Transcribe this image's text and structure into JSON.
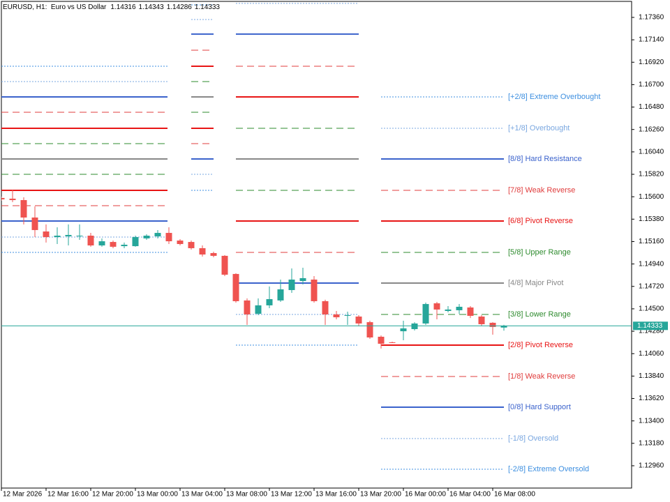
{
  "chart_data": {
    "type": "candlestick",
    "title": "EURUSD, H1:  Euro vs US Dollar",
    "categories": [
      "12 Mar 2026",
      null,
      null,
      null,
      "12 Mar 16:00",
      null,
      null,
      null,
      "12 Mar 20:00",
      null,
      null,
      null,
      "13 Mar 00:00",
      null,
      null,
      null,
      "13 Mar 04:00",
      null,
      null,
      null,
      "13 Mar 08:00",
      null,
      null,
      null,
      "13 Mar 12:00",
      null,
      null,
      null,
      "13 Mar 16:00",
      null,
      null,
      null,
      "13 Mar 20:00",
      null,
      null,
      null,
      "16 Mar 00:00",
      null,
      null,
      null,
      "16 Mar 04:00",
      null,
      null,
      null,
      "16 Mar 08:00",
      null
    ],
    "candles": [
      [
        1.15588,
        1.15601,
        1.1556,
        1.15574
      ],
      [
        1.15581,
        1.1567,
        1.15547,
        1.15567
      ],
      [
        1.15567,
        1.15594,
        1.15328,
        1.15396
      ],
      [
        1.15396,
        1.15505,
        1.15204,
        1.15273
      ],
      [
        1.15259,
        1.15328,
        1.1515,
        1.15204
      ],
      [
        1.15204,
        1.153,
        1.15136,
        1.15218
      ],
      [
        1.15211,
        1.15328,
        1.15122,
        1.15225
      ],
      [
        1.15211,
        1.15328,
        1.15177,
        1.15218
      ],
      [
        1.15218,
        1.15245,
        1.15109,
        1.15122
      ],
      [
        1.15122,
        1.15191,
        1.15109,
        1.15163
      ],
      [
        1.15156,
        1.1517,
        1.15095,
        1.15109
      ],
      [
        1.15115,
        1.1515,
        1.15095,
        1.15129
      ],
      [
        1.15115,
        1.15218,
        1.15109,
        1.15204
      ],
      [
        1.15191,
        1.15232,
        1.15177,
        1.15218
      ],
      [
        1.15211,
        1.15273,
        1.15191,
        1.15245
      ],
      [
        1.15245,
        1.153,
        1.15136,
        1.15163
      ],
      [
        1.1517,
        1.15184,
        1.15122,
        1.15136
      ],
      [
        1.15156,
        1.1517,
        1.15081,
        1.15095
      ],
      [
        1.15095,
        1.15122,
        1.15013,
        1.15033
      ],
      [
        1.15047,
        1.15061,
        1.15006,
        1.1502
      ],
      [
        1.1502,
        1.15027,
        1.14821,
        1.14835
      ],
      [
        1.14842,
        1.14849,
        1.14561,
        1.14575
      ],
      [
        1.14582,
        1.14602,
        1.14342,
        1.14445
      ],
      [
        1.14451,
        1.14602,
        1.14438,
        1.14534
      ],
      [
        1.14534,
        1.14719,
        1.14506,
        1.14595
      ],
      [
        1.14582,
        1.14787,
        1.14568,
        1.14691
      ],
      [
        1.14684,
        1.14896,
        1.14657,
        1.14787
      ],
      [
        1.14773,
        1.14903,
        1.14739,
        1.14801
      ],
      [
        1.14787,
        1.14821,
        1.14561,
        1.14575
      ],
      [
        1.14575,
        1.14589,
        1.14342,
        1.14445
      ],
      [
        1.14445,
        1.14479,
        1.14397,
        1.14417
      ],
      [
        1.14431,
        1.14472,
        1.14342,
        1.14438
      ],
      [
        1.14424,
        1.14438,
        1.14329,
        1.14356
      ],
      [
        1.14369,
        1.14383,
        1.14205,
        1.14219
      ],
      [
        1.14226,
        1.14239,
        1.1411,
        1.14157
      ],
      [
        1.14171,
        1.14178,
        1.14164,
        1.14164
      ],
      [
        1.1428,
        1.14383,
        1.14192,
        1.14308
      ],
      [
        1.14301,
        1.14369,
        1.14287,
        1.14356
      ],
      [
        1.14356,
        1.14561,
        1.14342,
        1.14547
      ],
      [
        1.14554,
        1.14568,
        1.14397,
        1.14493
      ],
      [
        1.14479,
        1.14527,
        1.14465,
        1.14493
      ],
      [
        1.14486,
        1.14547,
        1.14451,
        1.1452
      ],
      [
        1.14513,
        1.14527,
        1.1441,
        1.14431
      ],
      [
        1.14424,
        1.14438,
        1.14335,
        1.14349
      ],
      [
        1.14363,
        1.14369,
        1.14246,
        1.14322
      ],
      [
        1.14316,
        1.14343,
        1.14286,
        1.14333
      ]
    ],
    "up_color": "#26a69a",
    "down_color": "#ef5350",
    "ylim": [
      1.12741,
      1.17517
    ],
    "yticks": [
      {
        "value": 1.1736,
        "label": "1.17360"
      },
      {
        "value": 1.1714,
        "label": "1.17140"
      },
      {
        "value": 1.1692,
        "label": "1.16920"
      },
      {
        "value": 1.167,
        "label": "1.16700"
      },
      {
        "value": 1.1648,
        "label": "1.16480"
      },
      {
        "value": 1.1626,
        "label": "1.16260"
      },
      {
        "value": 1.1604,
        "label": "1.16040"
      },
      {
        "value": 1.1582,
        "label": "1.15820"
      },
      {
        "value": 1.156,
        "label": "1.15600"
      },
      {
        "value": 1.1538,
        "label": "1.15380"
      },
      {
        "value": 1.1516,
        "label": "1.15160"
      },
      {
        "value": 1.1494,
        "label": "1.14940"
      },
      {
        "value": 1.1472,
        "label": "1.14720"
      },
      {
        "value": 1.145,
        "label": "1.14500"
      },
      {
        "value": 1.1428,
        "label": "1.14280"
      },
      {
        "value": 1.1406,
        "label": "1.14060"
      },
      {
        "value": 1.1384,
        "label": "1.13840"
      },
      {
        "value": 1.1362,
        "label": "1.13620"
      },
      {
        "value": 1.134,
        "label": "1.13400"
      },
      {
        "value": 1.1318,
        "label": "1.13180"
      },
      {
        "value": 1.1296,
        "label": "1.12960"
      }
    ],
    "murrey": {
      "levels": [
        {
          "label": "[+2/8] Extreme Overbought",
          "color": "#3d8fe0",
          "style": "dot"
        },
        {
          "label": "[+1/8] Overbought",
          "color": "#7aa7e0",
          "style": "dot"
        },
        {
          "label": "[8/8] Hard Resistance",
          "color": "#3a62cc",
          "style": "solid"
        },
        {
          "label": "[7/8] Weak Reverse",
          "color": "#e03c3c",
          "style": "dash"
        },
        {
          "label": "[6/8] Pivot Reverse",
          "color": "#e81414",
          "style": "solid"
        },
        {
          "label": "[5/8] Upper Range",
          "color": "#2e8b2e",
          "style": "dash"
        },
        {
          "label": "[4/8] Major Pivot",
          "color": "#888888",
          "style": "solid"
        },
        {
          "label": "[3/8] Lower Range",
          "color": "#2e8b2e",
          "style": "dash"
        },
        {
          "label": "[2/8] Pivot Reverse",
          "color": "#e81414",
          "style": "solid"
        },
        {
          "label": "[1/8] Weak Reverse",
          "color": "#e03c3c",
          "style": "dash"
        },
        {
          "label": "[0/8] Hard Support",
          "color": "#3a62cc",
          "style": "solid"
        },
        {
          "label": "[-1/8] Oversold",
          "color": "#7aa7e0",
          "style": "dot"
        },
        {
          "label": "[-2/8] Extreme Oversold",
          "color": "#3d8fe0",
          "style": "dot"
        }
      ],
      "periods": [
        [
          1.16881,
          1.1673,
          1.1658,
          1.16429,
          1.16272,
          1.16121,
          1.15971,
          1.1582,
          1.15663,
          1.15512,
          1.15362,
          1.15204,
          1.15054
        ],
        [
          1.17483,
          1.17339,
          1.17196,
          1.17038,
          1.16881,
          1.1673,
          1.1658,
          1.16429,
          1.16272,
          1.16121,
          1.15971,
          1.1582,
          1.15663
        ],
        [
          null,
          1.17497,
          1.17196,
          1.16881,
          1.1658,
          1.16272,
          1.15971,
          1.15663,
          1.15362,
          1.15054,
          1.14753,
          1.14445,
          1.14144
        ],
        [
          1.1658,
          1.16272,
          1.15971,
          1.15663,
          1.15362,
          1.15054,
          1.14753,
          1.14445,
          1.14144,
          1.13836,
          1.13535,
          1.13227,
          1.12926
        ]
      ]
    }
  }
}
